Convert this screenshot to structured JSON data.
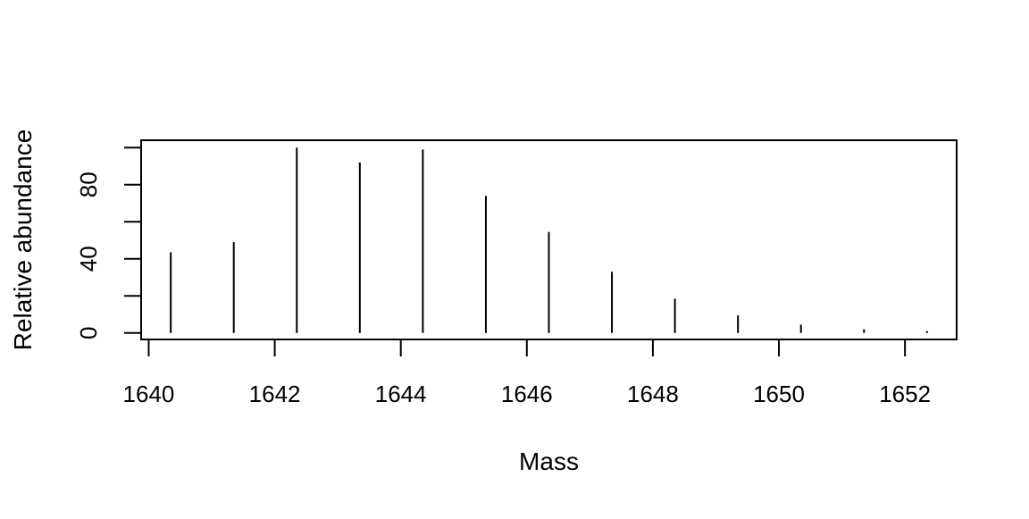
{
  "chart_data": {
    "type": "bar",
    "title": "",
    "xlabel": "Mass",
    "ylabel": "Relative abundance",
    "x": [
      1640.35,
      1641.35,
      1642.35,
      1643.35,
      1644.35,
      1645.35,
      1646.35,
      1647.35,
      1648.35,
      1649.35,
      1650.35,
      1651.35,
      1652.35
    ],
    "values": [
      43.5,
      49,
      100,
      92,
      99,
      74,
      54.5,
      33,
      18.5,
      9.5,
      4.5,
      2,
      1
    ],
    "xlim": [
      1639.88,
      1652.82
    ],
    "ylim": [
      -3.5,
      104
    ],
    "xticks": [
      1640,
      1642,
      1644,
      1646,
      1648,
      1650,
      1652
    ],
    "xtick_labels": [
      "1640",
      "1642",
      "1644",
      "1646",
      "1648",
      "1650",
      "1652"
    ],
    "yticks": [
      0,
      20,
      40,
      60,
      80,
      100
    ],
    "ytick_labels": [
      "0",
      "",
      "40",
      "",
      "80",
      ""
    ],
    "grid": false,
    "legend": "none",
    "colors": {
      "lines": "#000000",
      "axes": "#000000",
      "background": "#ffffff"
    }
  }
}
